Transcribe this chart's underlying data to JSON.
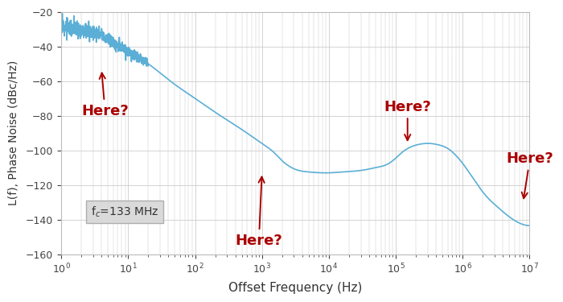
{
  "title": "",
  "xlabel": "Offset Frequency (Hz)",
  "ylabel": "L(f), Phase Noise (dBc/Hz)",
  "xlim_log": [
    0,
    7
  ],
  "ylim": [
    -160,
    -20
  ],
  "yticks": [
    -160,
    -140,
    -120,
    -100,
    -80,
    -60,
    -40,
    -20
  ],
  "background_color": "#ffffff",
  "line_color": "#5bafd6",
  "line_width": 1.2,
  "grid_color": "#cccccc",
  "annotation_color": "#aa0000",
  "fc_label": "f$_c$=133 MHz",
  "curve_points": [
    [
      0.0,
      -28.0
    ],
    [
      0.3,
      -30.0
    ],
    [
      0.5,
      -32.0
    ],
    [
      0.7,
      -36.0
    ],
    [
      1.0,
      -43.0
    ],
    [
      1.3,
      -50.0
    ],
    [
      1.5,
      -56.0
    ],
    [
      1.7,
      -62.0
    ],
    [
      2.0,
      -70.0
    ],
    [
      2.3,
      -78.0
    ],
    [
      2.5,
      -83.0
    ],
    [
      2.7,
      -88.0
    ],
    [
      3.0,
      -96.0
    ],
    [
      3.2,
      -102.0
    ],
    [
      3.3,
      -106.0
    ],
    [
      3.4,
      -109.0
    ],
    [
      3.5,
      -111.0
    ],
    [
      3.7,
      -112.5
    ],
    [
      4.0,
      -113.0
    ],
    [
      4.2,
      -112.5
    ],
    [
      4.5,
      -111.5
    ],
    [
      4.7,
      -110.0
    ],
    [
      4.9,
      -107.5
    ],
    [
      5.0,
      -104.5
    ],
    [
      5.1,
      -101.0
    ],
    [
      5.2,
      -98.5
    ],
    [
      5.3,
      -97.0
    ],
    [
      5.4,
      -96.2
    ],
    [
      5.5,
      -96.0
    ],
    [
      5.6,
      -96.5
    ],
    [
      5.7,
      -97.5
    ],
    [
      5.8,
      -99.5
    ],
    [
      5.9,
      -103.0
    ],
    [
      6.0,
      -107.5
    ],
    [
      6.1,
      -113.0
    ],
    [
      6.2,
      -118.5
    ],
    [
      6.3,
      -124.0
    ],
    [
      6.5,
      -132.0
    ],
    [
      6.7,
      -138.5
    ],
    [
      7.0,
      -143.5
    ]
  ],
  "noise_region_log_max": 1.3,
  "noise_seed": 12,
  "noise_amplitude": 2.5
}
